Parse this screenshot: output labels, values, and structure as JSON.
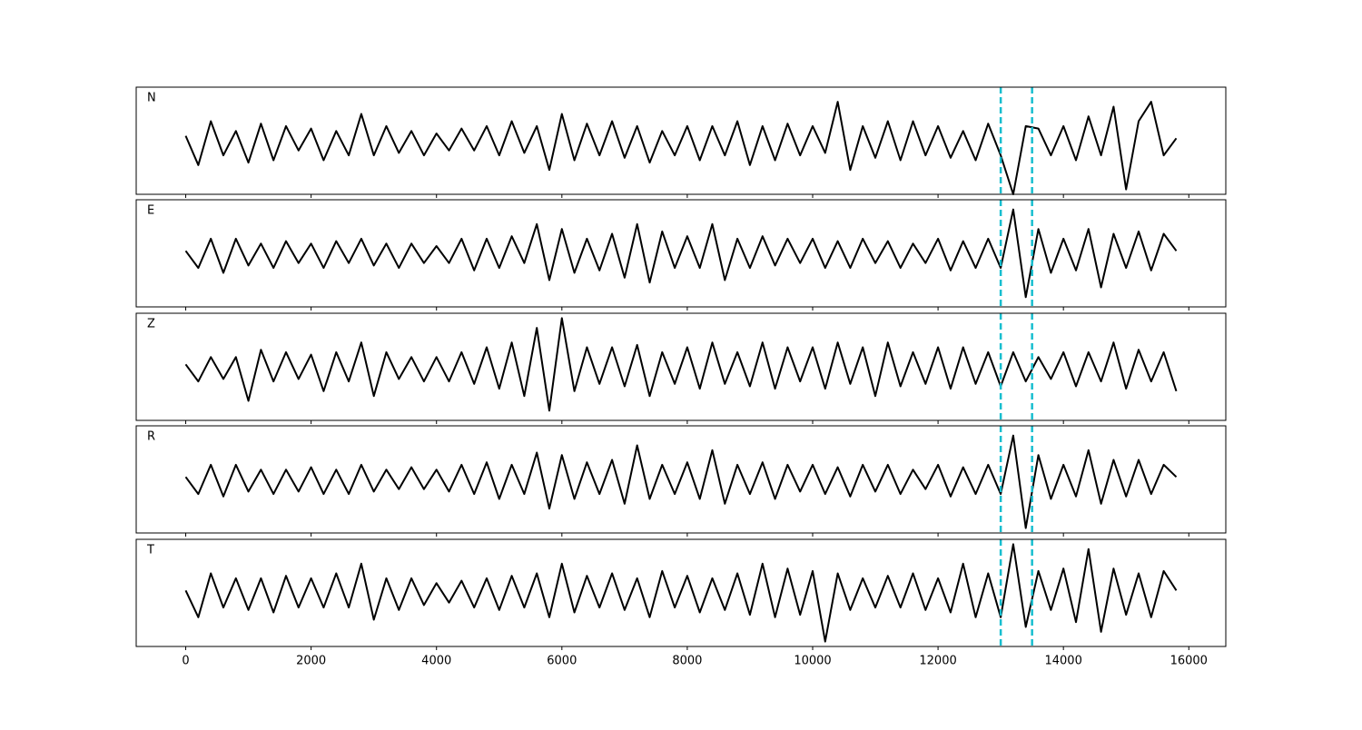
{
  "chart_data": {
    "type": "line",
    "x": [
      0,
      200,
      400,
      600,
      800,
      1000,
      1200,
      1400,
      1600,
      1800,
      2000,
      2200,
      2400,
      2600,
      2800,
      3000,
      3200,
      3400,
      3600,
      3800,
      4000,
      4200,
      4400,
      4600,
      4800,
      5000,
      5200,
      5400,
      5600,
      5800,
      6000,
      6200,
      6400,
      6600,
      6800,
      7000,
      7200,
      7400,
      7600,
      7800,
      8000,
      8200,
      8400,
      8600,
      8800,
      9000,
      9200,
      9400,
      9600,
      9800,
      10000,
      10200,
      10400,
      10600,
      10800,
      11000,
      11200,
      11400,
      11600,
      11800,
      12000,
      12200,
      12400,
      12600,
      12800,
      13000,
      13200,
      13400,
      13600,
      13800,
      14000,
      14200,
      14400,
      14600,
      14800,
      15000,
      15200,
      15400,
      15600,
      15800
    ],
    "xlim": [
      -790,
      16590
    ],
    "xticks": [
      0,
      2000,
      4000,
      6000,
      8000,
      10000,
      12000,
      14000,
      16000
    ],
    "ylim": [
      -1.1,
      1.1
    ],
    "series": [
      {
        "name": "N",
        "color": "#000000",
        "values": [
          0.1,
          -0.5,
          0.4,
          -0.3,
          0.2,
          -0.45,
          0.35,
          -0.4,
          0.3,
          -0.2,
          0.25,
          -0.4,
          0.2,
          -0.3,
          0.55,
          -0.3,
          0.3,
          -0.25,
          0.2,
          -0.3,
          0.15,
          -0.2,
          0.25,
          -0.2,
          0.3,
          -0.3,
          0.4,
          -0.25,
          0.3,
          -0.6,
          0.55,
          -0.4,
          0.35,
          -0.3,
          0.4,
          -0.35,
          0.3,
          -0.45,
          0.2,
          -0.3,
          0.3,
          -0.4,
          0.3,
          -0.3,
          0.4,
          -0.5,
          0.3,
          -0.4,
          0.35,
          -0.3,
          0.3,
          -0.25,
          0.8,
          -0.6,
          0.3,
          -0.35,
          0.4,
          -0.4,
          0.4,
          -0.3,
          0.3,
          -0.35,
          0.2,
          -0.4,
          0.35,
          -0.3,
          -1.1,
          0.3,
          0.25,
          -0.3,
          0.3,
          -0.4,
          0.5,
          -0.3,
          0.7,
          -1.0,
          0.4,
          0.8,
          -0.3,
          0.05
        ]
      },
      {
        "name": "E",
        "color": "#000000",
        "values": [
          0.05,
          -0.3,
          0.3,
          -0.4,
          0.3,
          -0.25,
          0.2,
          -0.3,
          0.25,
          -0.2,
          0.2,
          -0.3,
          0.25,
          -0.2,
          0.3,
          -0.25,
          0.2,
          -0.3,
          0.2,
          -0.2,
          0.15,
          -0.2,
          0.3,
          -0.35,
          0.3,
          -0.3,
          0.35,
          -0.2,
          0.6,
          -0.55,
          0.5,
          -0.4,
          0.3,
          -0.35,
          0.4,
          -0.5,
          0.6,
          -0.6,
          0.45,
          -0.3,
          0.35,
          -0.3,
          0.6,
          -0.55,
          0.3,
          -0.3,
          0.35,
          -0.25,
          0.3,
          -0.2,
          0.3,
          -0.3,
          0.25,
          -0.3,
          0.3,
          -0.2,
          0.25,
          -0.3,
          0.2,
          -0.2,
          0.3,
          -0.35,
          0.25,
          -0.3,
          0.3,
          -0.3,
          0.9,
          -0.9,
          0.5,
          -0.4,
          0.3,
          -0.35,
          0.5,
          -0.7,
          0.4,
          -0.3,
          0.45,
          -0.35,
          0.4,
          0.05
        ]
      },
      {
        "name": "Z",
        "color": "#000000",
        "values": [
          0.05,
          -0.3,
          0.2,
          -0.25,
          0.2,
          -0.7,
          0.35,
          -0.3,
          0.3,
          -0.25,
          0.25,
          -0.5,
          0.3,
          -0.3,
          0.5,
          -0.6,
          0.3,
          -0.25,
          0.2,
          -0.3,
          0.2,
          -0.3,
          0.3,
          -0.35,
          0.4,
          -0.45,
          0.5,
          -0.6,
          0.8,
          -0.9,
          1.0,
          -0.5,
          0.4,
          -0.35,
          0.4,
          -0.4,
          0.45,
          -0.6,
          0.3,
          -0.35,
          0.4,
          -0.45,
          0.5,
          -0.35,
          0.3,
          -0.4,
          0.5,
          -0.45,
          0.4,
          -0.3,
          0.4,
          -0.45,
          0.5,
          -0.35,
          0.4,
          -0.6,
          0.5,
          -0.4,
          0.3,
          -0.35,
          0.4,
          -0.45,
          0.4,
          -0.35,
          0.3,
          -0.4,
          0.3,
          -0.3,
          0.2,
          -0.25,
          0.3,
          -0.4,
          0.3,
          -0.3,
          0.5,
          -0.45,
          0.35,
          -0.3,
          0.3,
          -0.5
        ]
      },
      {
        "name": "R",
        "color": "#000000",
        "values": [
          0.05,
          -0.3,
          0.3,
          -0.35,
          0.3,
          -0.25,
          0.2,
          -0.3,
          0.2,
          -0.25,
          0.25,
          -0.3,
          0.2,
          -0.3,
          0.3,
          -0.25,
          0.2,
          -0.2,
          0.25,
          -0.2,
          0.2,
          -0.25,
          0.3,
          -0.3,
          0.35,
          -0.4,
          0.3,
          -0.3,
          0.55,
          -0.6,
          0.5,
          -0.4,
          0.35,
          -0.3,
          0.4,
          -0.5,
          0.7,
          -0.4,
          0.3,
          -0.3,
          0.35,
          -0.4,
          0.6,
          -0.5,
          0.3,
          -0.3,
          0.35,
          -0.4,
          0.3,
          -0.25,
          0.3,
          -0.3,
          0.25,
          -0.35,
          0.3,
          -0.25,
          0.3,
          -0.3,
          0.2,
          -0.2,
          0.3,
          -0.35,
          0.25,
          -0.3,
          0.3,
          -0.3,
          0.9,
          -1.0,
          0.5,
          -0.4,
          0.3,
          -0.35,
          0.6,
          -0.5,
          0.4,
          -0.35,
          0.4,
          -0.3,
          0.3,
          0.05
        ]
      },
      {
        "name": "T",
        "color": "#000000",
        "values": [
          0.05,
          -0.5,
          0.4,
          -0.3,
          0.3,
          -0.35,
          0.3,
          -0.4,
          0.35,
          -0.3,
          0.3,
          -0.3,
          0.4,
          -0.3,
          0.6,
          -0.55,
          0.3,
          -0.35,
          0.3,
          -0.25,
          0.2,
          -0.2,
          0.25,
          -0.3,
          0.3,
          -0.35,
          0.35,
          -0.3,
          0.4,
          -0.5,
          0.6,
          -0.4,
          0.35,
          -0.3,
          0.4,
          -0.35,
          0.3,
          -0.5,
          0.45,
          -0.3,
          0.35,
          -0.4,
          0.3,
          -0.35,
          0.4,
          -0.45,
          0.6,
          -0.5,
          0.5,
          -0.45,
          0.45,
          -1.0,
          0.4,
          -0.35,
          0.3,
          -0.3,
          0.35,
          -0.3,
          0.4,
          -0.35,
          0.3,
          -0.4,
          0.6,
          -0.5,
          0.4,
          -0.5,
          1.0,
          -0.7,
          0.45,
          -0.35,
          0.5,
          -0.6,
          0.9,
          -0.8,
          0.5,
          -0.45,
          0.4,
          -0.5,
          0.45,
          0.05
        ]
      }
    ],
    "markers": {
      "x": [
        13000,
        13500
      ],
      "color": "#17becf"
    }
  }
}
